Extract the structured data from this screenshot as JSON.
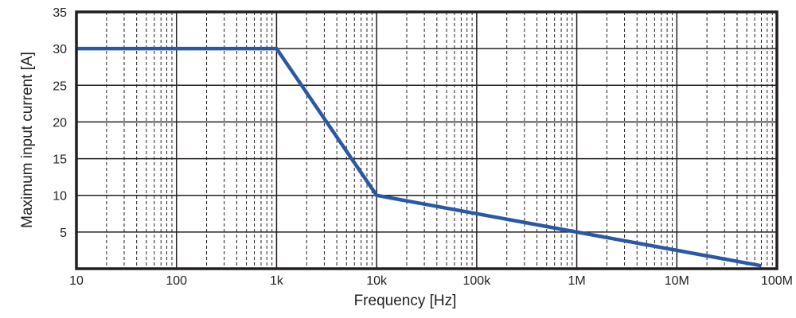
{
  "chart_data": {
    "type": "line",
    "title": "",
    "xlabel": "Frequency [Hz]",
    "ylabel": "Maximum input current [A]",
    "xscale": "log",
    "xlim": [
      10,
      100000000
    ],
    "ylim": [
      0,
      35
    ],
    "grid": true,
    "legend": null,
    "x_tick_labels": [
      "10",
      "100",
      "1k",
      "10k",
      "100k",
      "1M",
      "10M",
      "100M"
    ],
    "x_tick_values": [
      10,
      100,
      1000,
      10000,
      100000,
      1000000,
      10000000,
      100000000
    ],
    "y_tick_labels": [
      "5",
      "10",
      "15",
      "20",
      "25",
      "30",
      "35"
    ],
    "y_tick_values": [
      5,
      10,
      15,
      20,
      25,
      30,
      35
    ],
    "series": [
      {
        "name": "Maximum input current",
        "color": "#2a58a4",
        "x": [
          10,
          1000,
          10000,
          1000000,
          10000000,
          70000000
        ],
        "y": [
          30,
          30,
          10,
          5,
          2.5,
          0.4
        ]
      }
    ]
  },
  "colors": {
    "line": "#2a58a4",
    "frame": "#231f20",
    "grid": "#231f20",
    "background": "#ffffff"
  }
}
